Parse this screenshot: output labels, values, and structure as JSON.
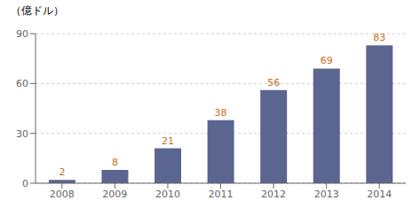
{
  "chart_data": {
    "type": "bar",
    "ylabel": "（億ドル）",
    "categories": [
      "2008",
      "2009",
      "2010",
      "2011",
      "2012",
      "2013",
      "2014"
    ],
    "values": [
      2,
      8,
      21,
      38,
      56,
      69,
      83
    ],
    "color": "#5a6690",
    "ylim": [
      0,
      90
    ],
    "yticks": [
      0,
      30,
      60,
      90
    ],
    "grid": true,
    "data_labels": true
  }
}
